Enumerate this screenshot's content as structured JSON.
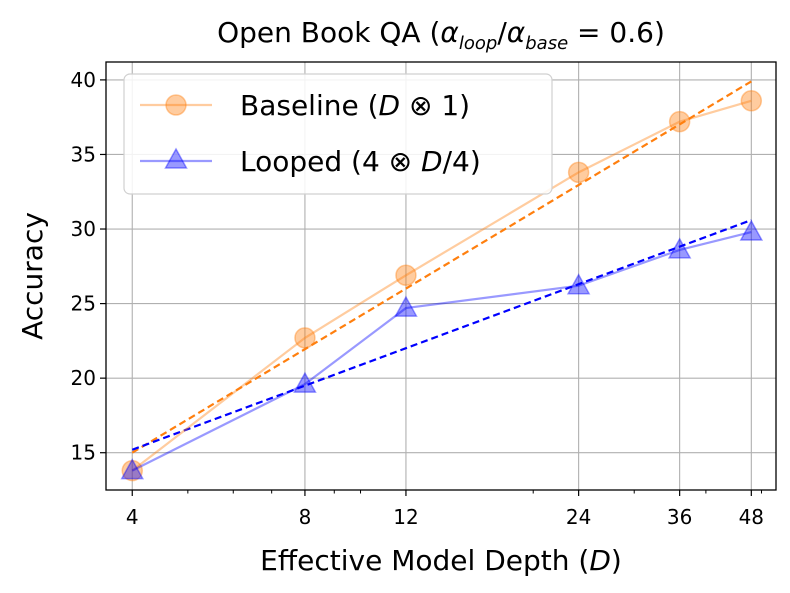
{
  "chart_data": {
    "type": "line",
    "title": "Open Book QA (α_loop/α_base = 0.6)",
    "xlabel": "Effective Model Depth (D)",
    "ylabel": "Accuracy",
    "x_scale": "log",
    "x": [
      4,
      8,
      12,
      24,
      36,
      48
    ],
    "x_tick_labels": [
      "4",
      "8",
      "12",
      "24",
      "36",
      "48"
    ],
    "y_ticks": [
      15,
      20,
      25,
      30,
      35,
      40
    ],
    "xlim": [
      3.6,
      53
    ],
    "ylim": [
      12.5,
      41.2
    ],
    "grid": true,
    "legend_position": "top-left",
    "series": [
      {
        "name": "Baseline (D ⊗ 1)",
        "marker": "circle",
        "color": "#ff7f0e",
        "values": [
          13.8,
          22.7,
          26.9,
          33.8,
          37.2,
          38.6
        ],
        "fit_color": "#ff7f0e",
        "fit_line": {
          "x": [
            4,
            48
          ],
          "y": [
            15.0,
            39.9
          ]
        }
      },
      {
        "name": "Looped (4 ⊗ D/4)",
        "marker": "triangle",
        "color": "#0000ff",
        "values": [
          13.8,
          19.6,
          24.7,
          26.2,
          28.6,
          29.8
        ],
        "fit_color": "#0000ff",
        "fit_line": {
          "x": [
            4,
            48
          ],
          "y": [
            15.2,
            30.6
          ]
        }
      }
    ]
  }
}
